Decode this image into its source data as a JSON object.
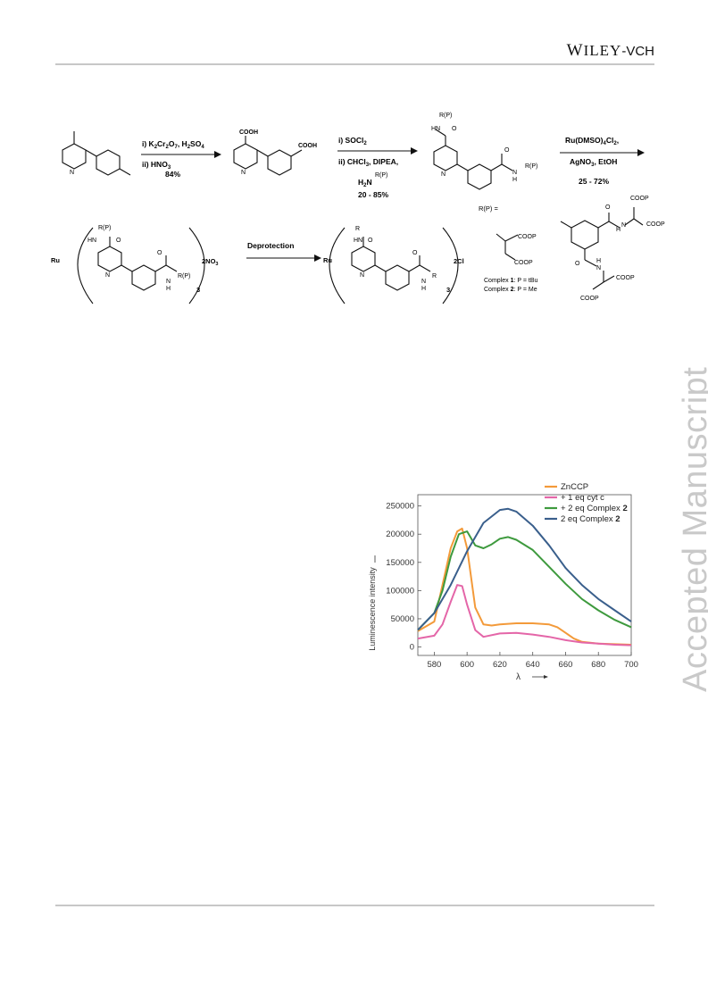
{
  "header": {
    "publisher_main": "W",
    "publisher_rest": "ILEY",
    "publisher_suffix": "-VCH"
  },
  "watermark": "Accepted Manuscript",
  "scheme": {
    "step1": {
      "reagents_a": "i) K",
      "a_sub1": "2",
      "a_mid": "Cr",
      "a_sub2": "2",
      "a_mid2": "O",
      "a_sub3": "7",
      "a_end": ", H",
      "a_sub4": "2",
      "a_end2": "SO",
      "a_sub5": "4",
      "reagents_b": "ii) HNO",
      "b_sub": "3",
      "yield": "84%"
    },
    "step2": {
      "reagents_a": "i) SOCl",
      "a_sub": "2",
      "reagents_b": "ii) CHCl",
      "b_sub": "3",
      "b_end": ", DIPEA,",
      "amine": "H",
      "amine_sub": "2",
      "amine_n": "N",
      "amine_r": "R(P)",
      "yield": "20 -  85%"
    },
    "step3": {
      "reagents_a": "Ru(DMSO)",
      "a_sub": "4",
      "a_end": "Cl",
      "a_sub2": "2",
      "a_comma": ",",
      "reagents_b": "AgNO",
      "b_sub": "3",
      "b_end": ", EtOH",
      "yield": "25 - 72%"
    },
    "step4": {
      "label": "Deprotection"
    },
    "atoms": {
      "cooh": "COOH",
      "n": "N",
      "hn": "HN",
      "h": "H",
      "o": "O",
      "rp": "R(P)",
      "r": "R",
      "ru": "Ru",
      "coop": "COOP"
    },
    "counterions": {
      "nitrate": "2NO",
      "nitrate_sub": "3",
      "chloride": "2Cl",
      "subscript_three": "3"
    },
    "r_def": "R(P) =",
    "complex1": {
      "prefix": "Complex ",
      "num": "1",
      "rest": ": P = tBu"
    },
    "complex2": {
      "prefix": "Complex ",
      "num": "2",
      "rest": ": P = Me"
    }
  },
  "chart_data": {
    "type": "line",
    "xlabel": "λ",
    "ylabel": "Luminescence intensity",
    "xlim": [
      570,
      700
    ],
    "ylim": [
      -15000,
      270000
    ],
    "xticks": [
      580,
      600,
      620,
      640,
      660,
      680,
      700
    ],
    "yticks": [
      0,
      50000,
      100000,
      150000,
      200000,
      250000
    ],
    "ytick_labels": [
      "0",
      "50000",
      "100000",
      "150000",
      "200000",
      "250000"
    ],
    "legend_position": "top-right",
    "grid": false,
    "series": [
      {
        "name": "ZnCCP",
        "color": "#f39a3a",
        "x": [
          570,
          580,
          585,
          590,
          594,
          597,
          600,
          605,
          610,
          615,
          620,
          630,
          640,
          650,
          655,
          660,
          665,
          670,
          680,
          690,
          700
        ],
        "y": [
          28000,
          45000,
          110000,
          175000,
          205000,
          210000,
          175000,
          70000,
          40000,
          38000,
          40000,
          42000,
          42000,
          40000,
          35000,
          25000,
          15000,
          9000,
          6000,
          5000,
          4000
        ]
      },
      {
        "name": "+ 1 eq cyt c",
        "color": "#e466a8",
        "x": [
          570,
          580,
          585,
          590,
          594,
          597,
          600,
          605,
          610,
          620,
          630,
          640,
          650,
          660,
          670,
          680,
          690,
          700
        ],
        "y": [
          15000,
          20000,
          40000,
          80000,
          110000,
          108000,
          75000,
          30000,
          18000,
          24000,
          25000,
          22000,
          18000,
          12000,
          8000,
          6000,
          4000,
          3000
        ]
      },
      {
        "name": "+ 2 eq Complex ",
        "name_bold": "2",
        "color": "#3e9a3e",
        "x": [
          570,
          580,
          585,
          590,
          595,
          600,
          605,
          610,
          615,
          620,
          625,
          630,
          640,
          650,
          660,
          670,
          680,
          690,
          700
        ],
        "y": [
          30000,
          60000,
          100000,
          160000,
          200000,
          205000,
          180000,
          175000,
          182000,
          192000,
          195000,
          190000,
          172000,
          142000,
          112000,
          85000,
          65000,
          48000,
          35000
        ]
      },
      {
        "name": "2 eq Complex ",
        "name_bold": "2",
        "color": "#3a5f8c",
        "x": [
          570,
          580,
          590,
          600,
          610,
          620,
          625,
          630,
          640,
          650,
          660,
          670,
          680,
          690,
          700
        ],
        "y": [
          30000,
          60000,
          110000,
          170000,
          220000,
          243000,
          245000,
          240000,
          215000,
          180000,
          140000,
          110000,
          85000,
          65000,
          45000
        ]
      }
    ]
  }
}
